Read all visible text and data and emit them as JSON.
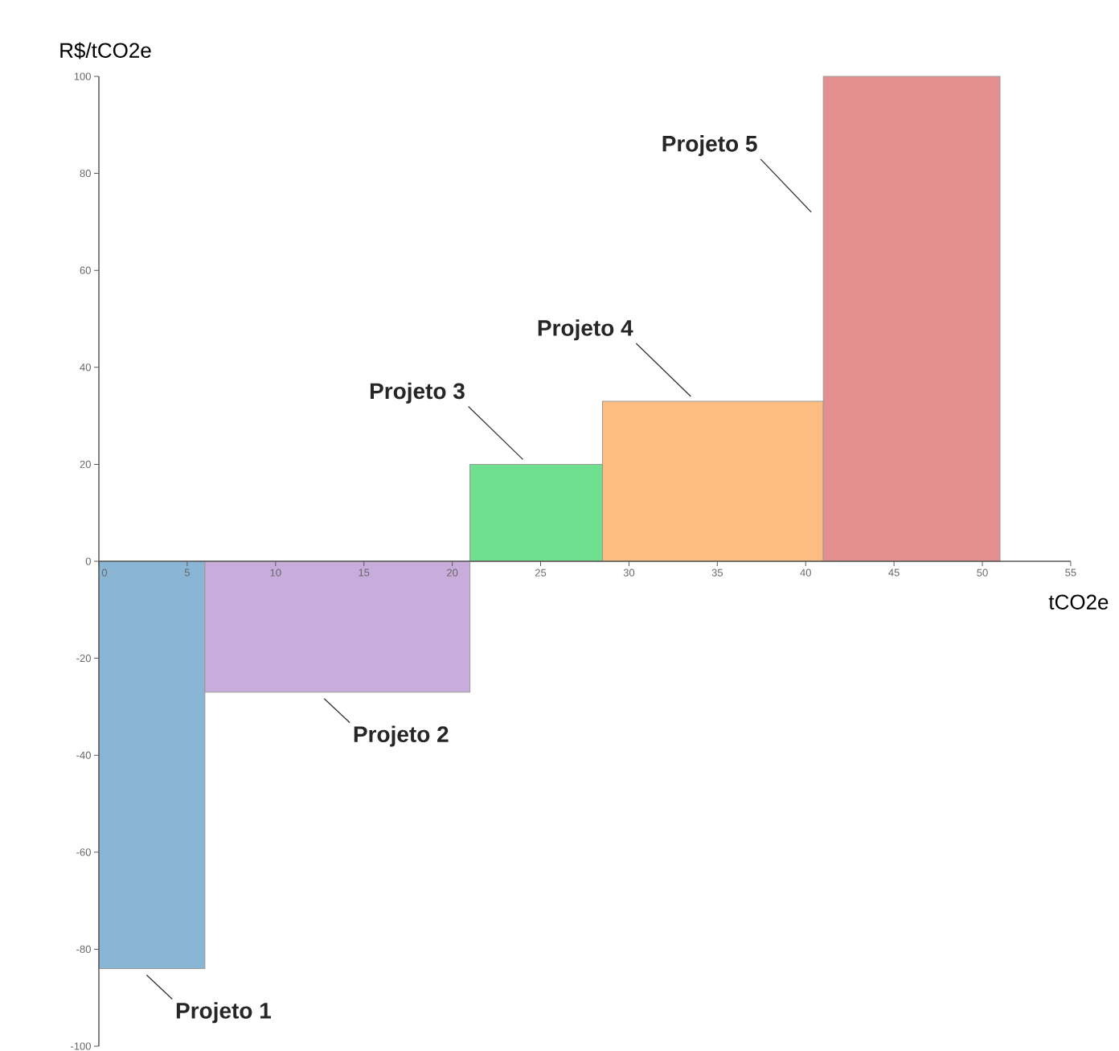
{
  "chart_data": {
    "type": "histogram",
    "xlabel": "tCO2e",
    "ylabel": "R$/tCO2e",
    "bins": [
      0,
      6,
      21,
      28.5,
      41,
      51
    ],
    "values": [
      -84,
      -27,
      20,
      33,
      100
    ],
    "colors": [
      "#8ab6d6",
      "#c8acdb",
      "#6ee08f",
      "#fdbd80",
      "#e38e8f"
    ],
    "xlim": [
      0,
      55
    ],
    "xticks": [
      0,
      5,
      10,
      15,
      20,
      25,
      30,
      35,
      40,
      45,
      50,
      55
    ],
    "ylim": [
      -100,
      100
    ],
    "yticks": [
      -100,
      -80,
      -60,
      -40,
      -20,
      0,
      20,
      40,
      60,
      80,
      100
    ],
    "grid": false,
    "annotations": [
      "Projeto 1",
      "Projeto 2",
      "Projeto 3",
      "Projeto 4",
      "Projeto 5"
    ]
  }
}
